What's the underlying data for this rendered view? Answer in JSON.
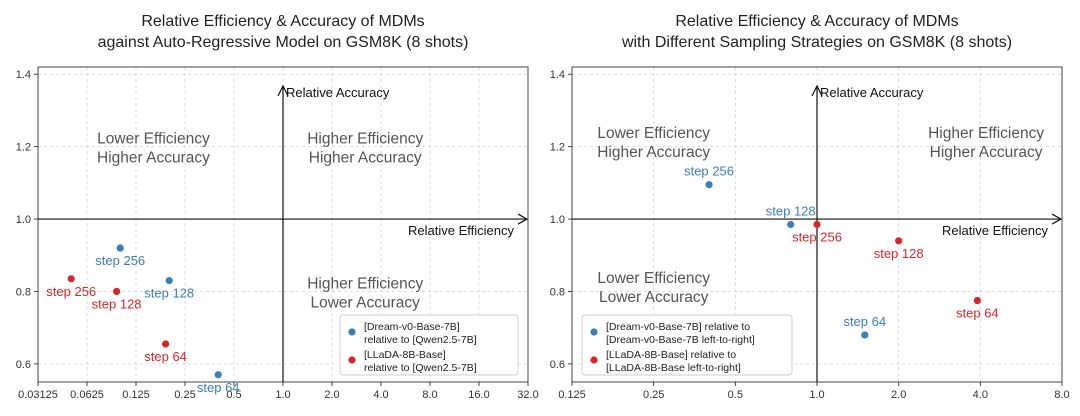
{
  "colors": {
    "dream": "#3a7fb8",
    "llada": "#d62728"
  },
  "chart_data": [
    {
      "type": "scatter",
      "title_line1": "Relative Efficiency & Accuracy of MDMs",
      "title_line2": "against Auto-Regressive Model on GSM8K (8 shots)",
      "xscale": "log2",
      "xlim": [
        0.03125,
        32.0
      ],
      "ylim": [
        0.55,
        1.42
      ],
      "xticks": [
        0.03125,
        0.0625,
        0.125,
        0.25,
        0.5,
        1.0,
        2.0,
        4.0,
        8.0,
        16.0,
        32.0
      ],
      "xtick_labels": [
        "0.03125",
        "0.0625",
        "0.125",
        "0.25",
        "0.5",
        "1.0",
        "2.0",
        "4.0",
        "8.0",
        "16.0",
        "32.0"
      ],
      "yticks": [
        0.6,
        0.8,
        1.0,
        1.2,
        1.4
      ],
      "ytick_labels": [
        "0.6",
        "0.8",
        "1.0",
        "1.2",
        "1.4"
      ],
      "xlabel": "Relative Efficiency",
      "ylabel": "Relative Accuracy",
      "grid": true,
      "quadrant_labels": [
        {
          "line1": "Lower Efficiency",
          "line2": "Higher Accuracy",
          "x": 0.16,
          "y": 1.2
        },
        {
          "line1": "Higher Efficiency",
          "line2": "Higher Accuracy",
          "x": 3.2,
          "y": 1.2
        },
        {
          "line1": "Higher Efficiency",
          "line2": "Lower Accuracy",
          "x": 3.2,
          "y": 0.8
        }
      ],
      "legend_position": "lower-right",
      "series": [
        {
          "name": "[Dream-v0-Base-7B] relative to [Qwen2.5-7B]",
          "legend_line1": "[Dream-v0-Base-7B]",
          "legend_line2": "relative to [Qwen2.5-7B]",
          "color": "dream",
          "points": [
            {
              "x": 0.1,
              "y": 0.92,
              "label": "step 256",
              "label_pos": "below"
            },
            {
              "x": 0.2,
              "y": 0.83,
              "label": "step 128",
              "label_pos": "below"
            },
            {
              "x": 0.4,
              "y": 0.57,
              "label": "step 64",
              "label_pos": "below"
            }
          ]
        },
        {
          "name": "[LLaDA-8B-Base] relative to [Qwen2.5-7B]",
          "legend_line1": "[LLaDA-8B-Base]",
          "legend_line2": "relative to [Qwen2.5-7B]",
          "color": "llada",
          "points": [
            {
              "x": 0.05,
              "y": 0.835,
              "label": "step 256",
              "label_pos": "below"
            },
            {
              "x": 0.095,
              "y": 0.8,
              "label": "step 128",
              "label_pos": "below"
            },
            {
              "x": 0.19,
              "y": 0.655,
              "label": "step 64",
              "label_pos": "below"
            }
          ]
        }
      ]
    },
    {
      "type": "scatter",
      "title_line1": "Relative Efficiency & Accuracy of MDMs",
      "title_line2": "with Different Sampling Strategies on GSM8K (8 shots)",
      "xscale": "log2",
      "xlim": [
        0.125,
        8.0
      ],
      "ylim": [
        0.55,
        1.42
      ],
      "xticks": [
        0.125,
        0.25,
        0.5,
        1.0,
        2.0,
        4.0,
        8.0
      ],
      "xtick_labels": [
        "0.125",
        "0.25",
        "0.5",
        "1.0",
        "2.0",
        "4.0",
        "8.0"
      ],
      "yticks": [
        0.6,
        0.8,
        1.0,
        1.2,
        1.4
      ],
      "ytick_labels": [
        "0.6",
        "0.8",
        "1.0",
        "1.2",
        "1.4"
      ],
      "xlabel": "Relative Efficiency",
      "ylabel": "Relative Accuracy",
      "grid": true,
      "quadrant_labels": [
        {
          "line1": "Lower Efficiency",
          "line2": "Higher Accuracy",
          "x": 0.25,
          "y": 1.215
        },
        {
          "line1": "Higher Efficiency",
          "line2": "Higher Accuracy",
          "x": 4.2,
          "y": 1.215
        },
        {
          "line1": "Lower Efficiency",
          "line2": "Lower Accuracy",
          "x": 0.25,
          "y": 0.815
        }
      ],
      "legend_position": "lower-left",
      "series": [
        {
          "name": "[Dream-v0-Base-7B] relative to [Dream-v0-Base-7B left-to-right]",
          "legend_line1": "[Dream-v0-Base-7B] relative to",
          "legend_line2": "[Dream-v0-Base-7B left-to-right]",
          "color": "dream",
          "points": [
            {
              "x": 0.4,
              "y": 1.095,
              "label": "step 256",
              "label_pos": "above"
            },
            {
              "x": 0.8,
              "y": 0.985,
              "label": "step 128",
              "label_pos": "above"
            },
            {
              "x": 1.5,
              "y": 0.68,
              "label": "step 64",
              "label_pos": "above"
            }
          ]
        },
        {
          "name": "[LLaDA-8B-Base] relative to [LLaDA-8B-Base left-to-right]",
          "legend_line1": "[LLaDA-8B-Base] relative to",
          "legend_line2": "[LLaDA-8B-Base left-to-right]",
          "color": "llada",
          "points": [
            {
              "x": 1.0,
              "y": 0.985,
              "label": "step 256",
              "label_pos": "below"
            },
            {
              "x": 2.0,
              "y": 0.94,
              "label": "step 128",
              "label_pos": "below"
            },
            {
              "x": 3.9,
              "y": 0.775,
              "label": "step 64",
              "label_pos": "below"
            }
          ]
        }
      ]
    }
  ]
}
